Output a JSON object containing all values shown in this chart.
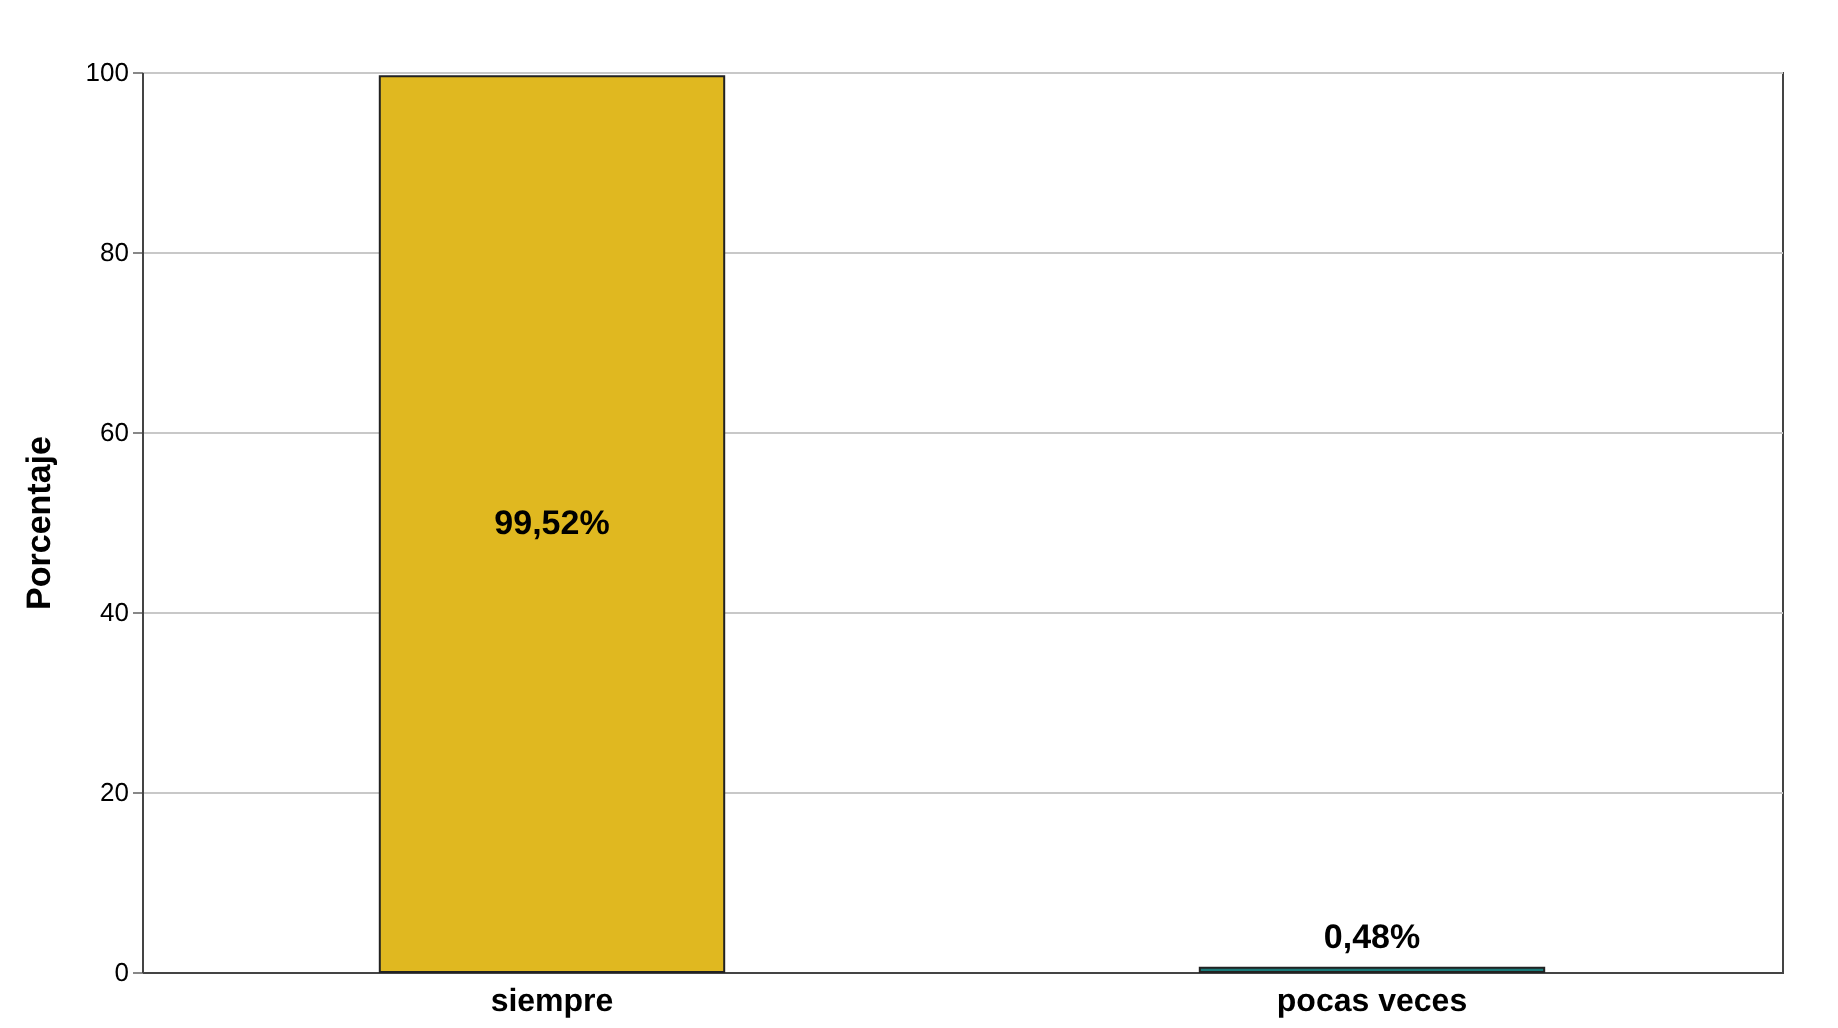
{
  "chart_data": {
    "type": "bar",
    "ylabel": "Porcentaje",
    "categories": [
      "siempre",
      "pocas veces"
    ],
    "values": [
      99.52,
      0.48
    ],
    "colors": [
      "#e0b820",
      "#1a7a78"
    ],
    "value_labels": [
      "99,52%",
      "0,48%"
    ],
    "ylim": [
      0,
      100
    ],
    "yticks": [
      0,
      20,
      40,
      60,
      80,
      100
    ],
    "grid": "y"
  }
}
